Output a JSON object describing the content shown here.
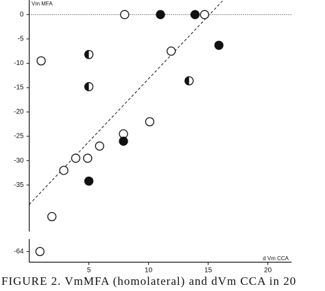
{
  "chart_data": {
    "type": "scatter",
    "y_label": "Vm MFA",
    "x_label": "d Vm CCA",
    "caption": "FIGURE 2.  VmMFA (homolateral) and dVm CCA in 20",
    "xlim": [
      0,
      22
    ],
    "ylim": [
      -66,
      3
    ],
    "y_break": [
      -44,
      -62
    ],
    "xticks": [
      5,
      10,
      15,
      20
    ],
    "yticks": [
      0,
      -5,
      -10,
      -15,
      -20,
      -25,
      -30,
      -35,
      -64
    ],
    "reference_y": 0,
    "fit_line": {
      "x": [
        0,
        16.2
      ],
      "y": [
        -39,
        2.8
      ]
    },
    "series": [
      {
        "marker": "open",
        "color": "#111111",
        "x": [
          1,
          8,
          14.7,
          11.9,
          10.1,
          7.9,
          5.9,
          4.9,
          3.9,
          2.9,
          1.9,
          0.9
        ],
        "values": [
          -9.5,
          0,
          0,
          -7.5,
          -22,
          -24.5,
          -27,
          -29.5,
          -29.5,
          -32,
          -41.5,
          -64
        ]
      },
      {
        "marker": "filled",
        "color": "#111111",
        "x": [
          11,
          13.9,
          15.9,
          7.9,
          5
        ],
        "values": [
          0,
          0,
          -6.3,
          -26,
          -34.2
        ]
      },
      {
        "marker": "half",
        "color": "#111111",
        "x": [
          5,
          5,
          13.4
        ],
        "values": [
          -8.2,
          -14.8,
          -13.6
        ]
      }
    ]
  }
}
